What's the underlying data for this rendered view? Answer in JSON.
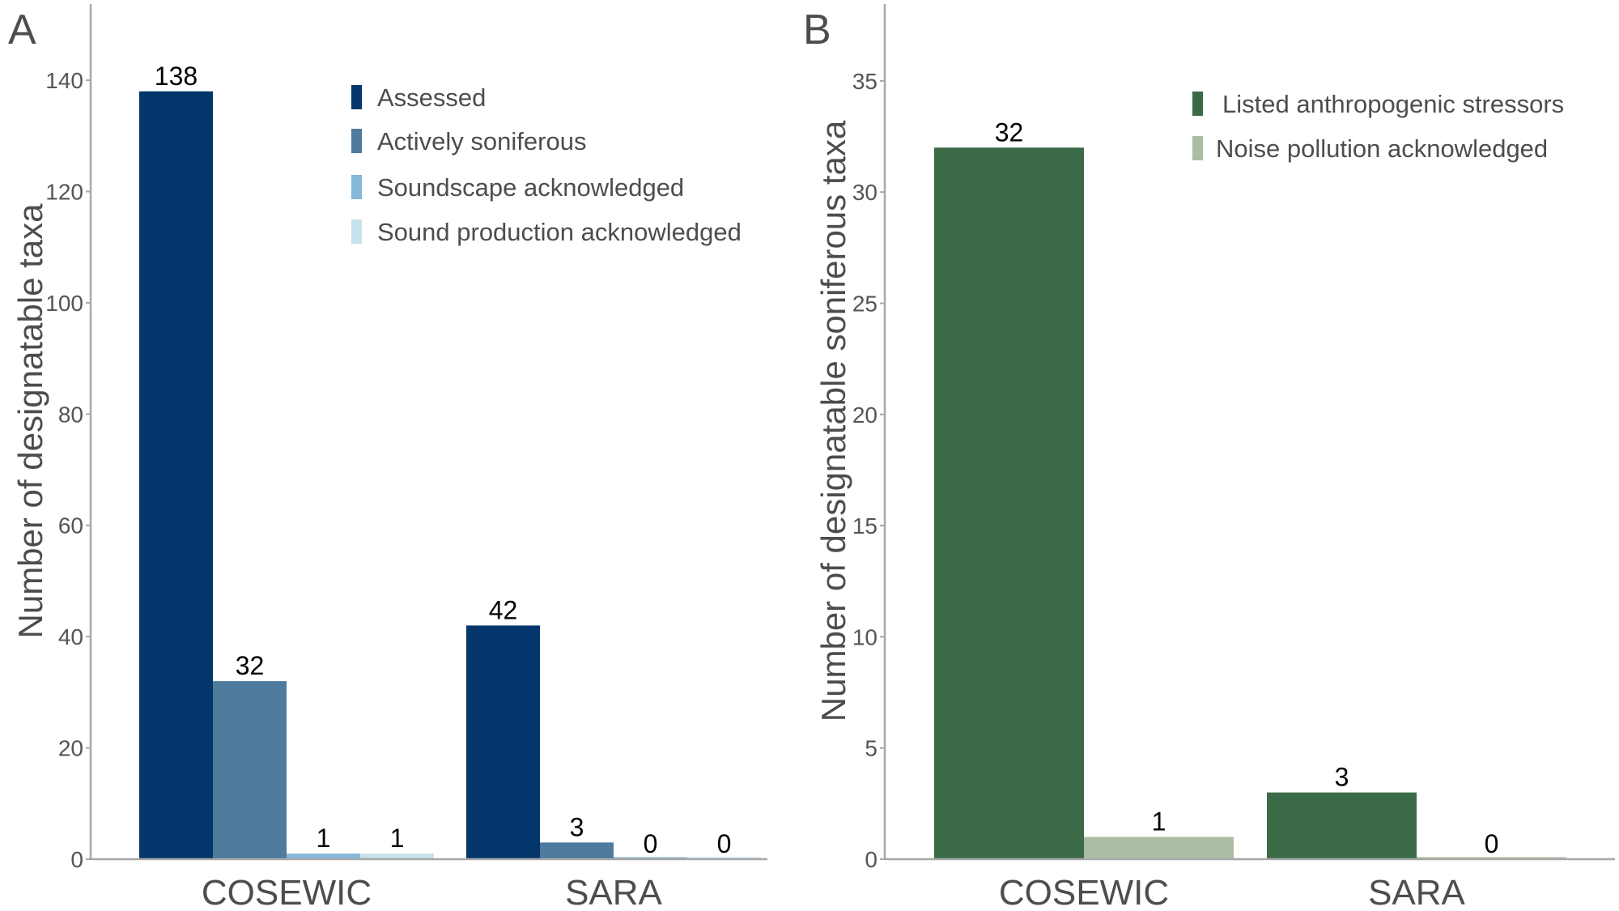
{
  "chart_data": [
    {
      "panel": "A",
      "type": "bar",
      "categories": [
        "COSEWIC",
        "SARA"
      ],
      "series": [
        {
          "name": "Assessed",
          "color": "#04366b",
          "values": [
            138,
            42
          ]
        },
        {
          "name": "Actively soniferous",
          "color": "#4e7b9d",
          "values": [
            32,
            3
          ]
        },
        {
          "name": "Soundscape acknowledged",
          "color": "#86b6d8",
          "values": [
            1,
            0
          ]
        },
        {
          "name": "Sound production acknowledged",
          "color": "#c6e2ea",
          "values": [
            1,
            0
          ]
        }
      ],
      "data_labels": [
        [
          "138",
          "42"
        ],
        [
          "32",
          "3"
        ],
        [
          "1",
          "0"
        ],
        [
          "1",
          "0"
        ]
      ],
      "title": "",
      "xlabel": "",
      "ylabel": "Number of designatable taxa",
      "ylim": [
        0,
        155
      ],
      "yticks": [
        0,
        20,
        40,
        60,
        80,
        100,
        120,
        140
      ],
      "ytick_labels": [
        "0",
        "20",
        "40",
        "60",
        "80",
        "100",
        "120",
        "140"
      ],
      "grid": false,
      "legend_position": "top-right"
    },
    {
      "panel": "B",
      "type": "bar",
      "categories": [
        "COSEWIC",
        "SARA"
      ],
      "series": [
        {
          "name": "Listed anthropogenic stressors",
          "color": "#3a6b46",
          "values": [
            32,
            3
          ]
        },
        {
          "name": "Noise pollution acknowledged",
          "color": "#abbda4",
          "values": [
            1,
            0
          ]
        }
      ],
      "data_labels": [
        [
          "32",
          "3"
        ],
        [
          "1",
          "0"
        ]
      ],
      "title": "",
      "xlabel": "",
      "ylabel": "Number of designatable soniferous taxa",
      "ylim": [
        0,
        38.5
      ],
      "yticks": [
        0,
        5,
        10,
        15,
        20,
        25,
        30,
        35
      ],
      "ytick_labels": [
        "0",
        "5",
        "10",
        "15",
        "20",
        "25",
        "30",
        "35"
      ],
      "grid": false,
      "legend_position": "top-right"
    }
  ],
  "panels": {
    "A": {
      "label": "A"
    },
    "B": {
      "label": "B"
    }
  }
}
